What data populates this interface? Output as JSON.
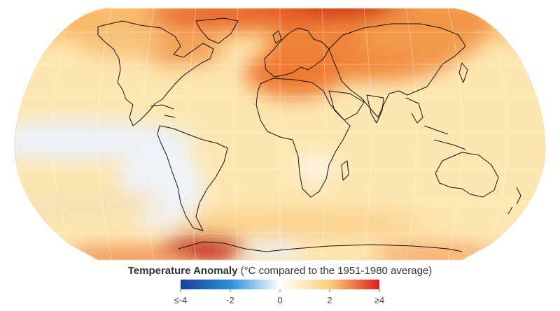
{
  "legend": {
    "title_bold": "Temperature Anomaly",
    "title_rest": "(°C compared to the 1951-1980 average)",
    "ticks": [
      "≤-4",
      "-2",
      "0",
      "2",
      "≥4"
    ],
    "colors": [
      "#1a3f9a",
      "#2b8fd6",
      "#ffffff",
      "#fbd07a",
      "#e01e1e"
    ]
  },
  "map": {
    "projection": "robinson",
    "ocean_base_color": "#fde8b4",
    "coastline_color": "#111111"
  }
}
